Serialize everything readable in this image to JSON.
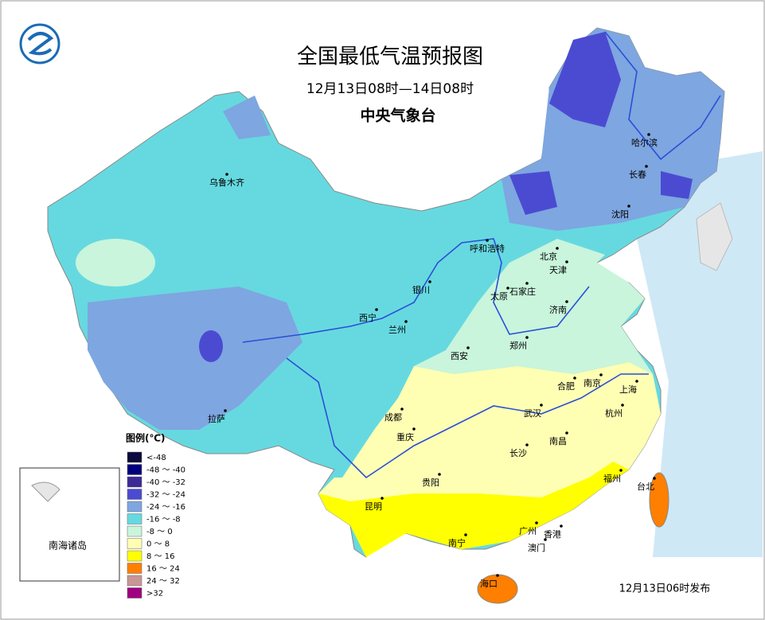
{
  "header": {
    "title": "全国最低气温预报图",
    "subtitle": "12月13日08时—14日08时",
    "agency": "中央气象台"
  },
  "cities": [
    {
      "name": "乌鲁木齐"
    },
    {
      "name": "哈尔滨"
    },
    {
      "name": "长春"
    },
    {
      "name": "沈阳"
    },
    {
      "name": "呼和浩特"
    },
    {
      "name": "北京"
    },
    {
      "name": "天津"
    },
    {
      "name": "石家庄"
    },
    {
      "name": "太原"
    },
    {
      "name": "济南"
    },
    {
      "name": "银川"
    },
    {
      "name": "西宁"
    },
    {
      "name": "兰州"
    },
    {
      "name": "西安"
    },
    {
      "name": "郑州"
    },
    {
      "name": "合肥"
    },
    {
      "name": "南京"
    },
    {
      "name": "上海"
    },
    {
      "name": "拉萨"
    },
    {
      "name": "成都"
    },
    {
      "name": "重庆"
    },
    {
      "name": "武汉"
    },
    {
      "name": "杭州"
    },
    {
      "name": "长沙"
    },
    {
      "name": "南昌"
    },
    {
      "name": "福州"
    },
    {
      "name": "台北"
    },
    {
      "name": "贵阳"
    },
    {
      "name": "昆明"
    },
    {
      "name": "南宁"
    },
    {
      "name": "广州"
    },
    {
      "name": "香港"
    },
    {
      "name": "澳门"
    },
    {
      "name": "海口"
    }
  ],
  "legend": {
    "title": "图例(℃)",
    "items": [
      {
        "label": "<-48",
        "color": "#0a0a3c"
      },
      {
        "label": "-48 ～ -40",
        "color": "#00007f"
      },
      {
        "label": "-40 ～ -32",
        "color": "#3c2a96"
      },
      {
        "label": "-32 ～ -24",
        "color": "#4b4bd2"
      },
      {
        "label": "-24 ～ -16",
        "color": "#7ea6e0"
      },
      {
        "label": "-16 ～ -8",
        "color": "#66d9e0"
      },
      {
        "label": "-8 ～ 0",
        "color": "#c8f5dc"
      },
      {
        "label": "0 ～ 8",
        "color": "#ffffb4"
      },
      {
        "label": "8 ～ 16",
        "color": "#ffff00"
      },
      {
        "label": "16 ～ 24",
        "color": "#ff7f00"
      },
      {
        "label": "24 ～ 32",
        "color": "#c89696"
      },
      {
        "label": ">32",
        "color": "#a0007f"
      }
    ]
  },
  "inset_label": "南海诸岛",
  "issued": "12月13日06时发布"
}
